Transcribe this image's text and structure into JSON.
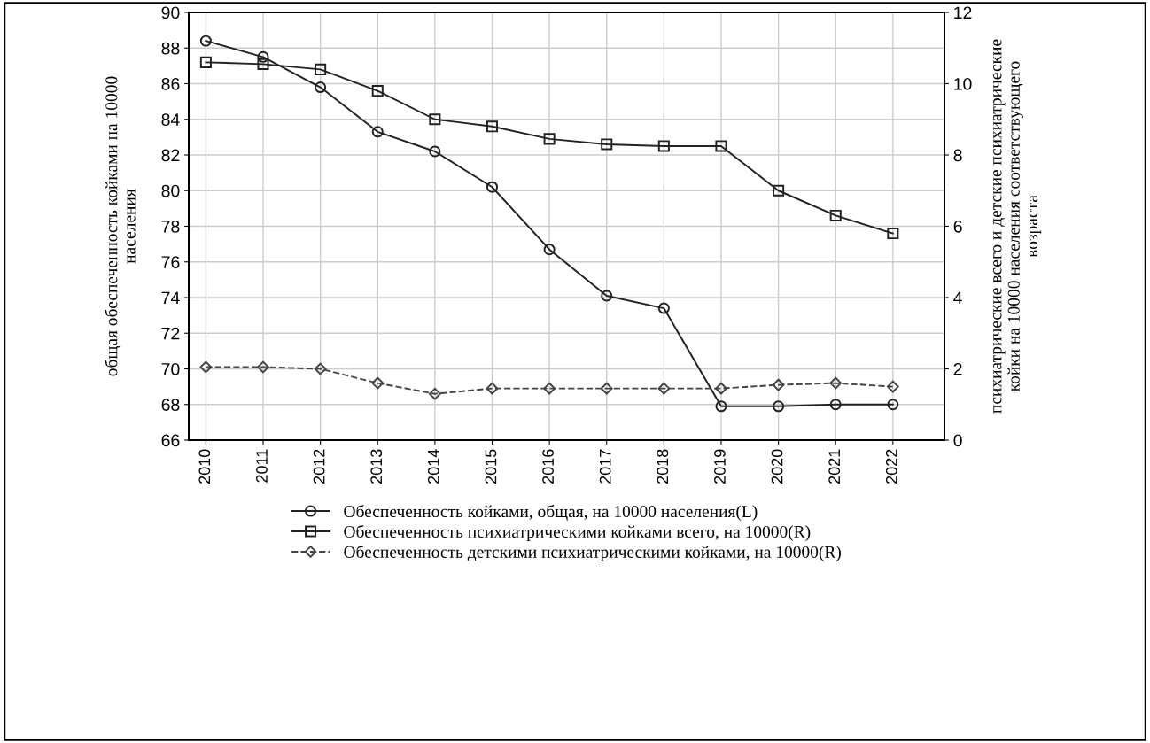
{
  "chart_data": {
    "type": "line",
    "ylabel": "общая обеспеченность койками на 10000\nнаселения",
    "y2label": "психиатрические всего и детские психиатрические\nкойки на 10000 населения соответствующего\nвозраста",
    "categories": [
      "2010",
      "2011",
      "2012",
      "2013",
      "2014",
      "2015",
      "2016",
      "2017",
      "2018",
      "2019",
      "2020",
      "2021",
      "2022"
    ],
    "series": [
      {
        "name": "Обеспеченность койками, общая, на 10000 населения(L)",
        "color": "#222222",
        "marker": "circle",
        "line_style": "solid",
        "values": [
          88.4,
          87.5,
          85.8,
          83.3,
          82.2,
          80.2,
          76.7,
          74.1,
          73.4,
          67.9,
          67.9,
          68.0,
          68.0
        ]
      },
      {
        "name": "Обеспеченность психиатрическими койками всего, на 10000(R)",
        "color": "#222222",
        "marker": "square",
        "line_style": "solid",
        "axis": "y2",
        "values": [
          10.6,
          10.55,
          10.4,
          9.8,
          9.0,
          8.8,
          8.45,
          8.3,
          8.25,
          8.25,
          7.0,
          6.3,
          5.8
        ]
      },
      {
        "name": "Обеспеченность детскими психиатрическими койками, на 10000(R)",
        "color": "#444444",
        "marker": "diamond",
        "line_style": "dashed",
        "axis": "y2",
        "values": [
          2.05,
          2.05,
          2.0,
          1.6,
          1.3,
          1.45,
          1.45,
          1.45,
          1.45,
          1.45,
          1.55,
          1.6,
          1.5
        ]
      }
    ],
    "ylim": [
      66,
      90
    ],
    "yticks": [
      66,
      68,
      70,
      72,
      74,
      76,
      78,
      80,
      82,
      84,
      86,
      88,
      90
    ],
    "y2lim": [
      0,
      12
    ],
    "y2ticks": [
      0,
      2,
      4,
      6,
      8,
      10,
      12
    ],
    "grid": true,
    "legend": "bottom"
  }
}
